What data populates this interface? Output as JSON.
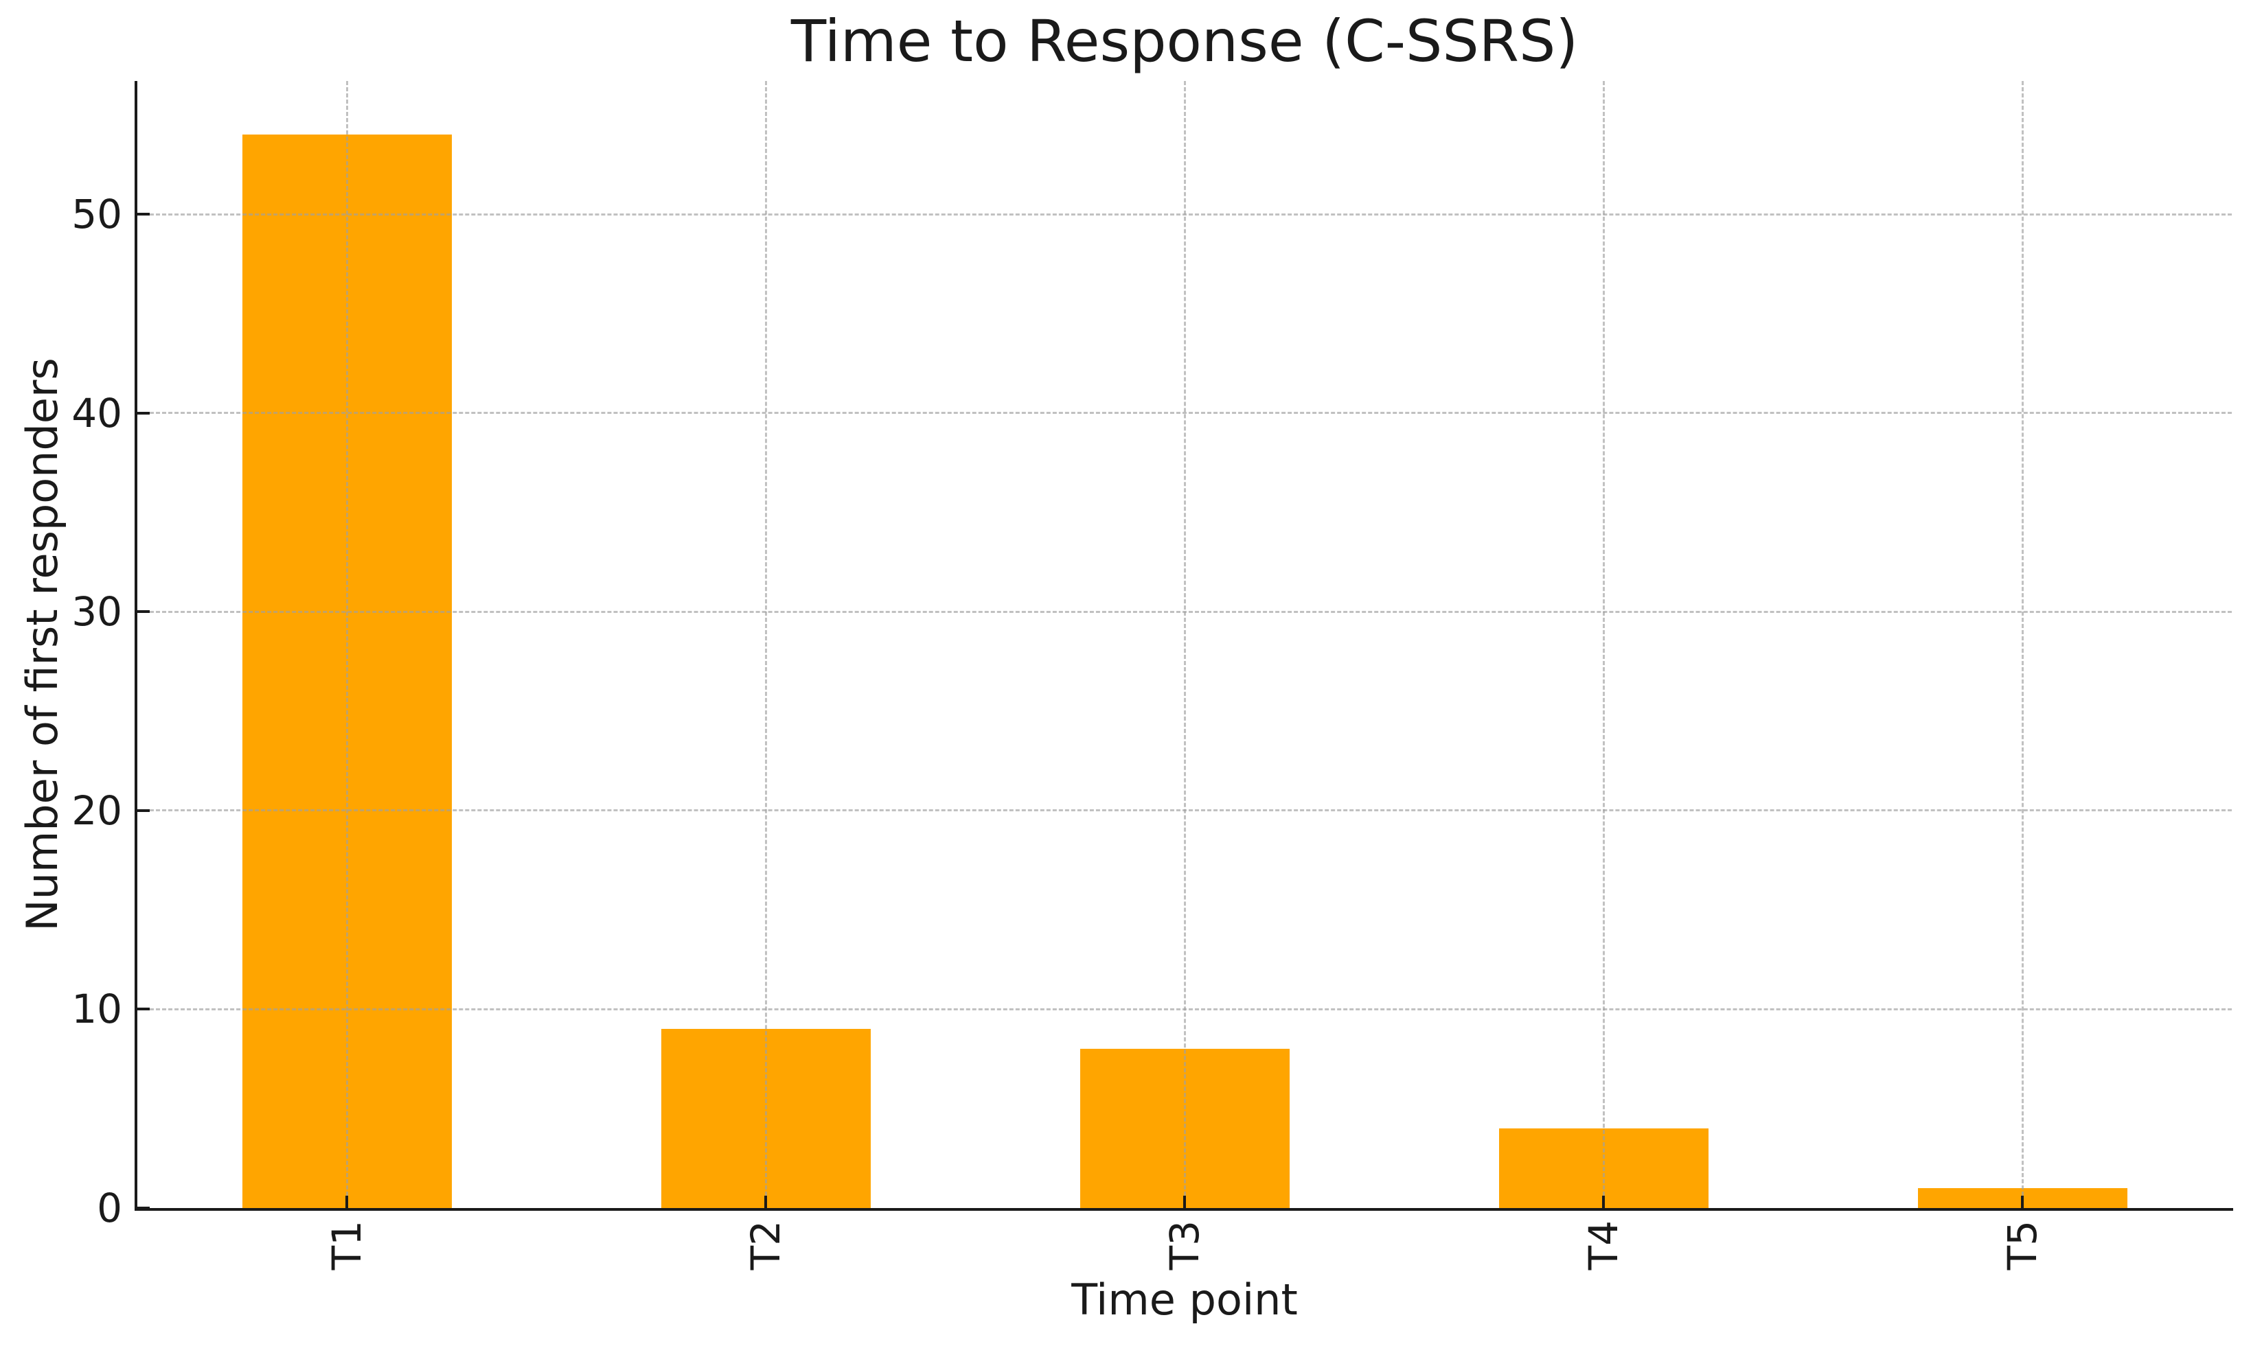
{
  "chart_data": {
    "type": "bar",
    "title": "Time to Response (C-SSRS)",
    "xlabel": "Time point",
    "ylabel": "Number of first responders",
    "categories": [
      "T1",
      "T2",
      "T3",
      "T4",
      "T5"
    ],
    "values": [
      54,
      9,
      8,
      4,
      1
    ],
    "yticks": [
      0,
      10,
      20,
      30,
      40,
      50
    ],
    "ylim": [
      0,
      56.7
    ],
    "xtick_rotation": 90,
    "bar_color": "#FFA500",
    "grid": "dashed, horizontal and vertical, drawn above bars",
    "grid_color": "#a0a0a0",
    "spine_color": "#1a1a1a",
    "legend": "none",
    "bar_width_fraction": 0.5
  }
}
